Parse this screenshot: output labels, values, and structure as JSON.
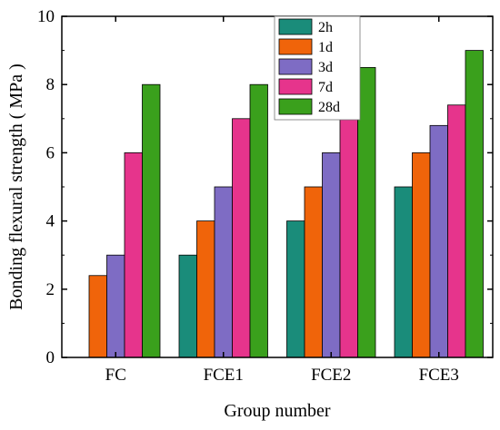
{
  "chart_data": {
    "type": "bar",
    "title": "",
    "xlabel": "Group number",
    "ylabel": "Bonding flexural strength ( MPa )",
    "ylim": [
      0,
      10
    ],
    "yticks": [
      "0",
      "2",
      "4",
      "6",
      "8",
      "10"
    ],
    "categories": [
      "FC",
      "FCE1",
      "FCE2",
      "FCE3"
    ],
    "series": [
      {
        "name": "2h",
        "color": "#1a8c7a",
        "values": [
          null,
          3,
          4,
          5
        ]
      },
      {
        "name": "1d",
        "color": "#f0640a",
        "values": [
          2.4,
          4,
          5,
          6
        ]
      },
      {
        "name": "3d",
        "color": "#7e6cc4",
        "values": [
          3,
          5,
          6,
          6.8
        ]
      },
      {
        "name": "7d",
        "color": "#e6348c",
        "values": [
          6,
          7,
          7,
          7.4
        ]
      },
      {
        "name": "28d",
        "color": "#3aa01c",
        "values": [
          8,
          8,
          8.5,
          9
        ]
      }
    ],
    "legend_position": "top-center",
    "grid": false
  }
}
